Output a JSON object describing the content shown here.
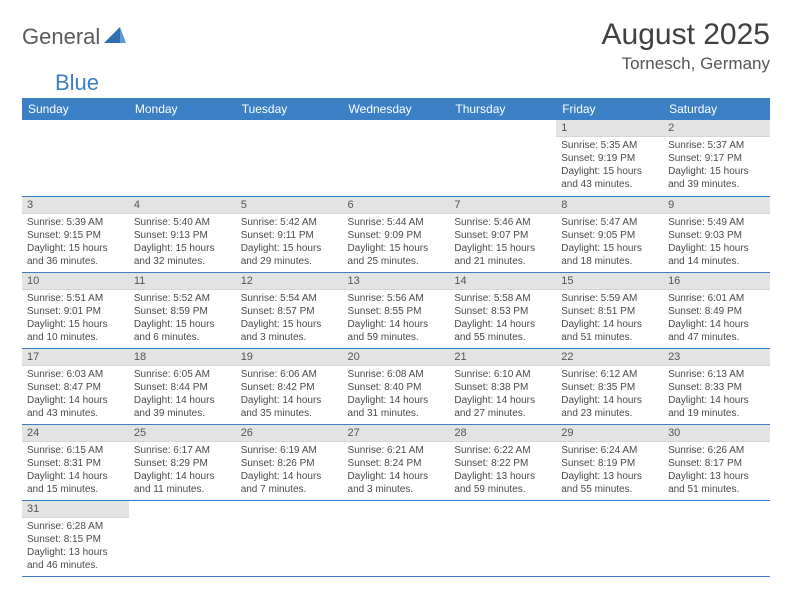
{
  "logo": {
    "part1": "General",
    "part2": "Blue"
  },
  "title": "August 2025",
  "location": "Tornesch, Germany",
  "colors": {
    "header_bg": "#3b7fc4",
    "header_text": "#ffffff",
    "daynum_bg": "#e3e3e3",
    "row_border": "#3b7fc4",
    "body_text": "#4a4a4a",
    "logo_gray": "#5a5a5a",
    "logo_blue": "#3b7fc4"
  },
  "weekdays": [
    "Sunday",
    "Monday",
    "Tuesday",
    "Wednesday",
    "Thursday",
    "Friday",
    "Saturday"
  ],
  "weeks": [
    [
      {
        "n": "",
        "empty": true
      },
      {
        "n": "",
        "empty": true
      },
      {
        "n": "",
        "empty": true
      },
      {
        "n": "",
        "empty": true
      },
      {
        "n": "",
        "empty": true
      },
      {
        "n": "1",
        "sunrise": "Sunrise: 5:35 AM",
        "sunset": "Sunset: 9:19 PM",
        "daylight": "Daylight: 15 hours and 43 minutes."
      },
      {
        "n": "2",
        "sunrise": "Sunrise: 5:37 AM",
        "sunset": "Sunset: 9:17 PM",
        "daylight": "Daylight: 15 hours and 39 minutes."
      }
    ],
    [
      {
        "n": "3",
        "sunrise": "Sunrise: 5:39 AM",
        "sunset": "Sunset: 9:15 PM",
        "daylight": "Daylight: 15 hours and 36 minutes."
      },
      {
        "n": "4",
        "sunrise": "Sunrise: 5:40 AM",
        "sunset": "Sunset: 9:13 PM",
        "daylight": "Daylight: 15 hours and 32 minutes."
      },
      {
        "n": "5",
        "sunrise": "Sunrise: 5:42 AM",
        "sunset": "Sunset: 9:11 PM",
        "daylight": "Daylight: 15 hours and 29 minutes."
      },
      {
        "n": "6",
        "sunrise": "Sunrise: 5:44 AM",
        "sunset": "Sunset: 9:09 PM",
        "daylight": "Daylight: 15 hours and 25 minutes."
      },
      {
        "n": "7",
        "sunrise": "Sunrise: 5:46 AM",
        "sunset": "Sunset: 9:07 PM",
        "daylight": "Daylight: 15 hours and 21 minutes."
      },
      {
        "n": "8",
        "sunrise": "Sunrise: 5:47 AM",
        "sunset": "Sunset: 9:05 PM",
        "daylight": "Daylight: 15 hours and 18 minutes."
      },
      {
        "n": "9",
        "sunrise": "Sunrise: 5:49 AM",
        "sunset": "Sunset: 9:03 PM",
        "daylight": "Daylight: 15 hours and 14 minutes."
      }
    ],
    [
      {
        "n": "10",
        "sunrise": "Sunrise: 5:51 AM",
        "sunset": "Sunset: 9:01 PM",
        "daylight": "Daylight: 15 hours and 10 minutes."
      },
      {
        "n": "11",
        "sunrise": "Sunrise: 5:52 AM",
        "sunset": "Sunset: 8:59 PM",
        "daylight": "Daylight: 15 hours and 6 minutes."
      },
      {
        "n": "12",
        "sunrise": "Sunrise: 5:54 AM",
        "sunset": "Sunset: 8:57 PM",
        "daylight": "Daylight: 15 hours and 3 minutes."
      },
      {
        "n": "13",
        "sunrise": "Sunrise: 5:56 AM",
        "sunset": "Sunset: 8:55 PM",
        "daylight": "Daylight: 14 hours and 59 minutes."
      },
      {
        "n": "14",
        "sunrise": "Sunrise: 5:58 AM",
        "sunset": "Sunset: 8:53 PM",
        "daylight": "Daylight: 14 hours and 55 minutes."
      },
      {
        "n": "15",
        "sunrise": "Sunrise: 5:59 AM",
        "sunset": "Sunset: 8:51 PM",
        "daylight": "Daylight: 14 hours and 51 minutes."
      },
      {
        "n": "16",
        "sunrise": "Sunrise: 6:01 AM",
        "sunset": "Sunset: 8:49 PM",
        "daylight": "Daylight: 14 hours and 47 minutes."
      }
    ],
    [
      {
        "n": "17",
        "sunrise": "Sunrise: 6:03 AM",
        "sunset": "Sunset: 8:47 PM",
        "daylight": "Daylight: 14 hours and 43 minutes."
      },
      {
        "n": "18",
        "sunrise": "Sunrise: 6:05 AM",
        "sunset": "Sunset: 8:44 PM",
        "daylight": "Daylight: 14 hours and 39 minutes."
      },
      {
        "n": "19",
        "sunrise": "Sunrise: 6:06 AM",
        "sunset": "Sunset: 8:42 PM",
        "daylight": "Daylight: 14 hours and 35 minutes."
      },
      {
        "n": "20",
        "sunrise": "Sunrise: 6:08 AM",
        "sunset": "Sunset: 8:40 PM",
        "daylight": "Daylight: 14 hours and 31 minutes."
      },
      {
        "n": "21",
        "sunrise": "Sunrise: 6:10 AM",
        "sunset": "Sunset: 8:38 PM",
        "daylight": "Daylight: 14 hours and 27 minutes."
      },
      {
        "n": "22",
        "sunrise": "Sunrise: 6:12 AM",
        "sunset": "Sunset: 8:35 PM",
        "daylight": "Daylight: 14 hours and 23 minutes."
      },
      {
        "n": "23",
        "sunrise": "Sunrise: 6:13 AM",
        "sunset": "Sunset: 8:33 PM",
        "daylight": "Daylight: 14 hours and 19 minutes."
      }
    ],
    [
      {
        "n": "24",
        "sunrise": "Sunrise: 6:15 AM",
        "sunset": "Sunset: 8:31 PM",
        "daylight": "Daylight: 14 hours and 15 minutes."
      },
      {
        "n": "25",
        "sunrise": "Sunrise: 6:17 AM",
        "sunset": "Sunset: 8:29 PM",
        "daylight": "Daylight: 14 hours and 11 minutes."
      },
      {
        "n": "26",
        "sunrise": "Sunrise: 6:19 AM",
        "sunset": "Sunset: 8:26 PM",
        "daylight": "Daylight: 14 hours and 7 minutes."
      },
      {
        "n": "27",
        "sunrise": "Sunrise: 6:21 AM",
        "sunset": "Sunset: 8:24 PM",
        "daylight": "Daylight: 14 hours and 3 minutes."
      },
      {
        "n": "28",
        "sunrise": "Sunrise: 6:22 AM",
        "sunset": "Sunset: 8:22 PM",
        "daylight": "Daylight: 13 hours and 59 minutes."
      },
      {
        "n": "29",
        "sunrise": "Sunrise: 6:24 AM",
        "sunset": "Sunset: 8:19 PM",
        "daylight": "Daylight: 13 hours and 55 minutes."
      },
      {
        "n": "30",
        "sunrise": "Sunrise: 6:26 AM",
        "sunset": "Sunset: 8:17 PM",
        "daylight": "Daylight: 13 hours and 51 minutes."
      }
    ],
    [
      {
        "n": "31",
        "sunrise": "Sunrise: 6:28 AM",
        "sunset": "Sunset: 8:15 PM",
        "daylight": "Daylight: 13 hours and 46 minutes."
      },
      {
        "n": "",
        "empty": true,
        "trailing": true
      },
      {
        "n": "",
        "empty": true,
        "trailing": true
      },
      {
        "n": "",
        "empty": true,
        "trailing": true
      },
      {
        "n": "",
        "empty": true,
        "trailing": true
      },
      {
        "n": "",
        "empty": true,
        "trailing": true
      },
      {
        "n": "",
        "empty": true,
        "trailing": true
      }
    ]
  ]
}
